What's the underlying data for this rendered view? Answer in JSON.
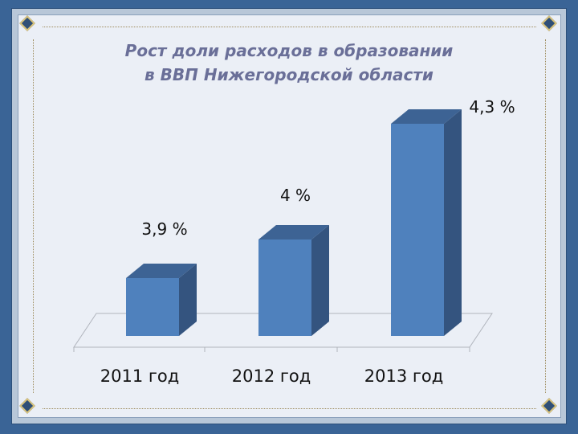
{
  "slide": {
    "title_line1": "Рост доли расходов в образовании",
    "title_line2": "в ВВП Нижегородской области"
  },
  "colors": {
    "bar_front": "#4f81bd",
    "bar_side": "#34547f",
    "bar_top": "#3d6394",
    "title": "#6a6f98"
  },
  "chart_data": {
    "type": "bar",
    "categories": [
      "2011 год",
      "2012 год",
      "2013 год"
    ],
    "values": [
      3.9,
      4.0,
      4.3
    ],
    "data_labels": [
      "3,9 %",
      "4 %",
      "4,3 %"
    ],
    "title": "Рост доли расходов в образовании в ВВП Нижегородской области",
    "xlabel": "",
    "ylabel": "",
    "grid": false,
    "style": "3d-column"
  }
}
